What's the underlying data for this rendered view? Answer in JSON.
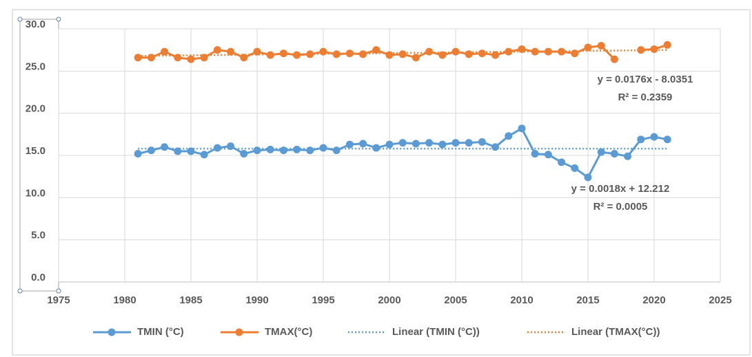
{
  "chart_data": {
    "type": "line",
    "x": [
      1981,
      1982,
      1983,
      1984,
      1985,
      1986,
      1987,
      1988,
      1989,
      1990,
      1991,
      1992,
      1993,
      1994,
      1995,
      1996,
      1997,
      1998,
      1999,
      2000,
      2001,
      2002,
      2003,
      2004,
      2005,
      2006,
      2007,
      2008,
      2009,
      2010,
      2011,
      2012,
      2013,
      2014,
      2015,
      2016,
      2017,
      2018,
      2019,
      2020,
      2021
    ],
    "series": [
      {
        "name": "TMIN (°C)",
        "color": "#5b9bd5",
        "values": [
          15.2,
          15.6,
          16.0,
          15.5,
          15.5,
          15.1,
          15.9,
          16.1,
          15.2,
          15.6,
          15.7,
          15.6,
          15.7,
          15.6,
          15.9,
          15.6,
          16.3,
          16.4,
          15.9,
          16.3,
          16.5,
          16.4,
          16.5,
          16.3,
          16.5,
          16.5,
          16.6,
          16.0,
          17.3,
          18.2,
          15.2,
          15.1,
          14.2,
          13.5,
          12.4,
          15.4,
          15.2,
          14.9,
          16.9,
          17.2,
          16.9
        ]
      },
      {
        "name": "TMAX(°C)",
        "color": "#ed7d31",
        "values": [
          26.6,
          26.6,
          27.3,
          26.6,
          26.4,
          26.6,
          27.5,
          27.3,
          26.6,
          27.3,
          26.9,
          27.1,
          26.9,
          27.0,
          27.3,
          27.0,
          27.1,
          27.0,
          27.5,
          26.9,
          27.0,
          26.6,
          27.3,
          26.9,
          27.3,
          27.0,
          27.1,
          26.9,
          27.3,
          27.6,
          27.3,
          27.3,
          27.3,
          27.1,
          27.8,
          28.0,
          26.4,
          null,
          27.5,
          27.6,
          28.1
        ]
      }
    ],
    "trendlines": [
      {
        "name": "Linear (TMIN (°C))",
        "color": "#5b9bd5",
        "x": [
          1981,
          2021
        ],
        "values": [
          15.8,
          15.8
        ],
        "equation": "y = 0.0018x + 12.212",
        "r2": "R² = 0.0005"
      },
      {
        "name": "Linear (TMAX(°C))",
        "color": "#ed7d31",
        "x": [
          1981,
          2021
        ],
        "values": [
          26.8,
          27.5
        ],
        "equation": "y = 0.0176x - 8.0351",
        "r2": "R² = 0.2359"
      }
    ],
    "xlim": [
      1975,
      2025
    ],
    "xticks": [
      1975,
      1980,
      1985,
      1990,
      1995,
      2000,
      2005,
      2010,
      2015,
      2020,
      2025
    ],
    "ylim": [
      0,
      30
    ],
    "yticks": [
      {
        "value": 0,
        "label": "0.0"
      },
      {
        "value": 5,
        "label": "5.0"
      },
      {
        "value": 10,
        "label": "10.0"
      },
      {
        "value": 15,
        "label": "15.0"
      },
      {
        "value": 20,
        "label": "20.0"
      },
      {
        "value": 25,
        "label": "25.0"
      },
      {
        "value": 30,
        "label": "30.0"
      }
    ],
    "grid": true,
    "legend": "bottom"
  }
}
